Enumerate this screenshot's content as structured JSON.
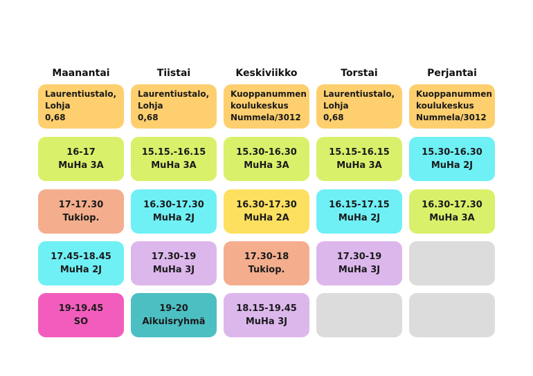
{
  "days": [
    "Maanantai",
    "Tiistai",
    "Keskiviikko",
    "Torstai",
    "Perjantai"
  ],
  "locations": [
    [
      "Laurentiustalo,",
      "Lohja",
      "0,68"
    ],
    [
      "Laurentiustalo,",
      "Lohja",
      "0,68"
    ],
    [
      "Kuoppanummen",
      "koulukeskus",
      "Nummela/3012"
    ],
    [
      "Laurentiustalo,",
      "Lohja",
      "0,68"
    ],
    [
      "Kuoppanummen",
      "koulukeskus",
      "Nummela/3012"
    ]
  ],
  "rows": [
    [
      {
        "time": "16-17",
        "group": "MuHa 3A",
        "color": "#d9f06a"
      },
      {
        "time": "15.15.-16.15",
        "group": "MuHa 3A",
        "color": "#d9f06a"
      },
      {
        "time": "15.30-16.30",
        "group": "MuHa 3A",
        "color": "#d9f06a"
      },
      {
        "time": "15.15-16.15",
        "group": "MuHa 3A",
        "color": "#d9f06a"
      },
      {
        "time": "15.30-16.30",
        "group": "MuHa 2J",
        "color": "#6ff0f5"
      }
    ],
    [
      {
        "time": "17-17.30",
        "group": "Tukiop.",
        "color": "#f4ae8d"
      },
      {
        "time": "16.30-17.30",
        "group": "MuHa 2J",
        "color": "#6ff0f5"
      },
      {
        "time": "16.30-17.30",
        "group": "MuHa 2A",
        "color": "#fde05f"
      },
      {
        "time": "16.15-17.15",
        "group": "MuHa 2J",
        "color": "#6ff0f5"
      },
      {
        "time": "16.30-17.30",
        "group": "MuHa 3A",
        "color": "#d9f06a"
      }
    ],
    [
      {
        "time": "17.45-18.45",
        "group": "MuHa 2J",
        "color": "#6ff0f5"
      },
      {
        "time": "17.30-19",
        "group": "MuHa 3J",
        "color": "#dcb7ec"
      },
      {
        "time": "17.30-18",
        "group": "Tukiop.",
        "color": "#f4ae8d"
      },
      {
        "time": "17.30-19",
        "group": "MuHa 3J",
        "color": "#dcb7ec"
      },
      {
        "time": "",
        "group": "",
        "color": "#dcdcdc"
      }
    ],
    [
      {
        "time": "19-19.45",
        "group": "SO",
        "color": "#f25dbd"
      },
      {
        "time": "19-20",
        "group": "Aikuisryhmä",
        "color": "#4cbfc3"
      },
      {
        "time": "18.15-19.45",
        "group": "MuHa 3J",
        "color": "#dcb7ec"
      },
      {
        "time": "",
        "group": "",
        "color": "#dcdcdc"
      },
      {
        "time": "",
        "group": "",
        "color": "#dcdcdc"
      }
    ]
  ]
}
